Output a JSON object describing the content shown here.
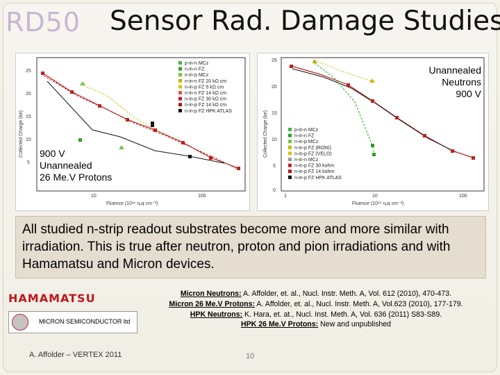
{
  "header": {
    "logo_text": "RD50",
    "title": "Sensor Rad. Damage Studies"
  },
  "left_plot": {
    "overlay_lines": [
      "900 V",
      "Unannealed",
      "26 Me.V Protons"
    ],
    "y_axis_label": "Collected Charge (ke)",
    "x_axis_label": "Fluence (10¹⁴ nₑq cm⁻²)",
    "y_ticks": [
      "25",
      "20",
      "15",
      "10",
      "5"
    ],
    "x_ticks": [
      "10",
      "100"
    ],
    "legend": [
      {
        "label": "p-in-n MCz",
        "color": "#44b83a"
      },
      {
        "label": "n-in-n FZ",
        "color": "#2f9e2f"
      },
      {
        "label": "n-in-p MCz",
        "color": "#7ac142"
      },
      {
        "label": "n-in-n FZ 20 kΩ cm",
        "color": "#c9b400"
      },
      {
        "label": "n-in-p FZ 5 kΩ cm",
        "color": "#e0c000"
      },
      {
        "label": "n-in-n FZ 14 kΩ cm",
        "color": "#e05050"
      },
      {
        "label": "n-in-p FZ 30 kΩ cm",
        "color": "#c02020"
      },
      {
        "label": "n-in-p FZ 14 kΩ cm",
        "color": "#b01818"
      },
      {
        "label": "n-in-p FZ HPK ATLAS",
        "color": "#111111"
      }
    ]
  },
  "right_plot": {
    "overlay_lines": [
      "Unannealed",
      "Neutrons",
      "900 V"
    ],
    "y_axis_label": "Collected Charge (ke)",
    "x_axis_label": "Fluence (10¹⁴ nₑq cm⁻²)",
    "y_ticks": [
      "25",
      "20",
      "15",
      "10",
      "5",
      "0"
    ],
    "x_ticks": [
      "1",
      "10",
      "100"
    ],
    "legend": [
      {
        "label": "p-in-n MCz",
        "color": "#44b83a"
      },
      {
        "label": "n-in-n FZ",
        "color": "#2f9e2f"
      },
      {
        "label": "n-in-p MCz",
        "color": "#7ac142"
      },
      {
        "label": "n-in-p FZ (RD50)",
        "color": "#c9b400"
      },
      {
        "label": "n-in-p FZ (VELO)",
        "color": "#e0c000"
      },
      {
        "label": "n-in-n MCz",
        "color": "#9c9c9c"
      },
      {
        "label": "n-in-p FZ 30 kohm",
        "color": "#c02020"
      },
      {
        "label": "n-in-p FZ 14 kohm",
        "color": "#b01818"
      },
      {
        "label": "n-in-p FZ HPK ATLAS",
        "color": "#111111"
      }
    ]
  },
  "summary_text": "All studied n-strip readout substrates become more and more similar with irradiation.   This is true after neutron, proton and pion irradiations and with Hamamatsu and Micron devices.",
  "logos": {
    "hamamatsu": "HAMAMATSU",
    "micron": "MICRON SEMICONDUCTOR ltd"
  },
  "references": [
    {
      "label": "Micron Neutrons:",
      "text": " A. Affolder, et. al., Nucl. Instr. Meth. A, Vol. 612 (2010), 470-473."
    },
    {
      "label": "Micron 26 Me.V Protons:",
      "text": " A. Affolder, et. al., Nucl. Instr. Meth. A, Vol.623 (2010), 177-179."
    },
    {
      "label": "HPK Neutrons:",
      "text": "  K. Hara, et. at., Nucl. Inst. Meth. A, Vol. 636 (2011) S83-S89."
    },
    {
      "label": "HPK 26 Me.V Protons:",
      "text": "  New and unpublished"
    }
  ],
  "footer": {
    "author": "A. Affolder – VERTEX 2011",
    "page": "10"
  }
}
